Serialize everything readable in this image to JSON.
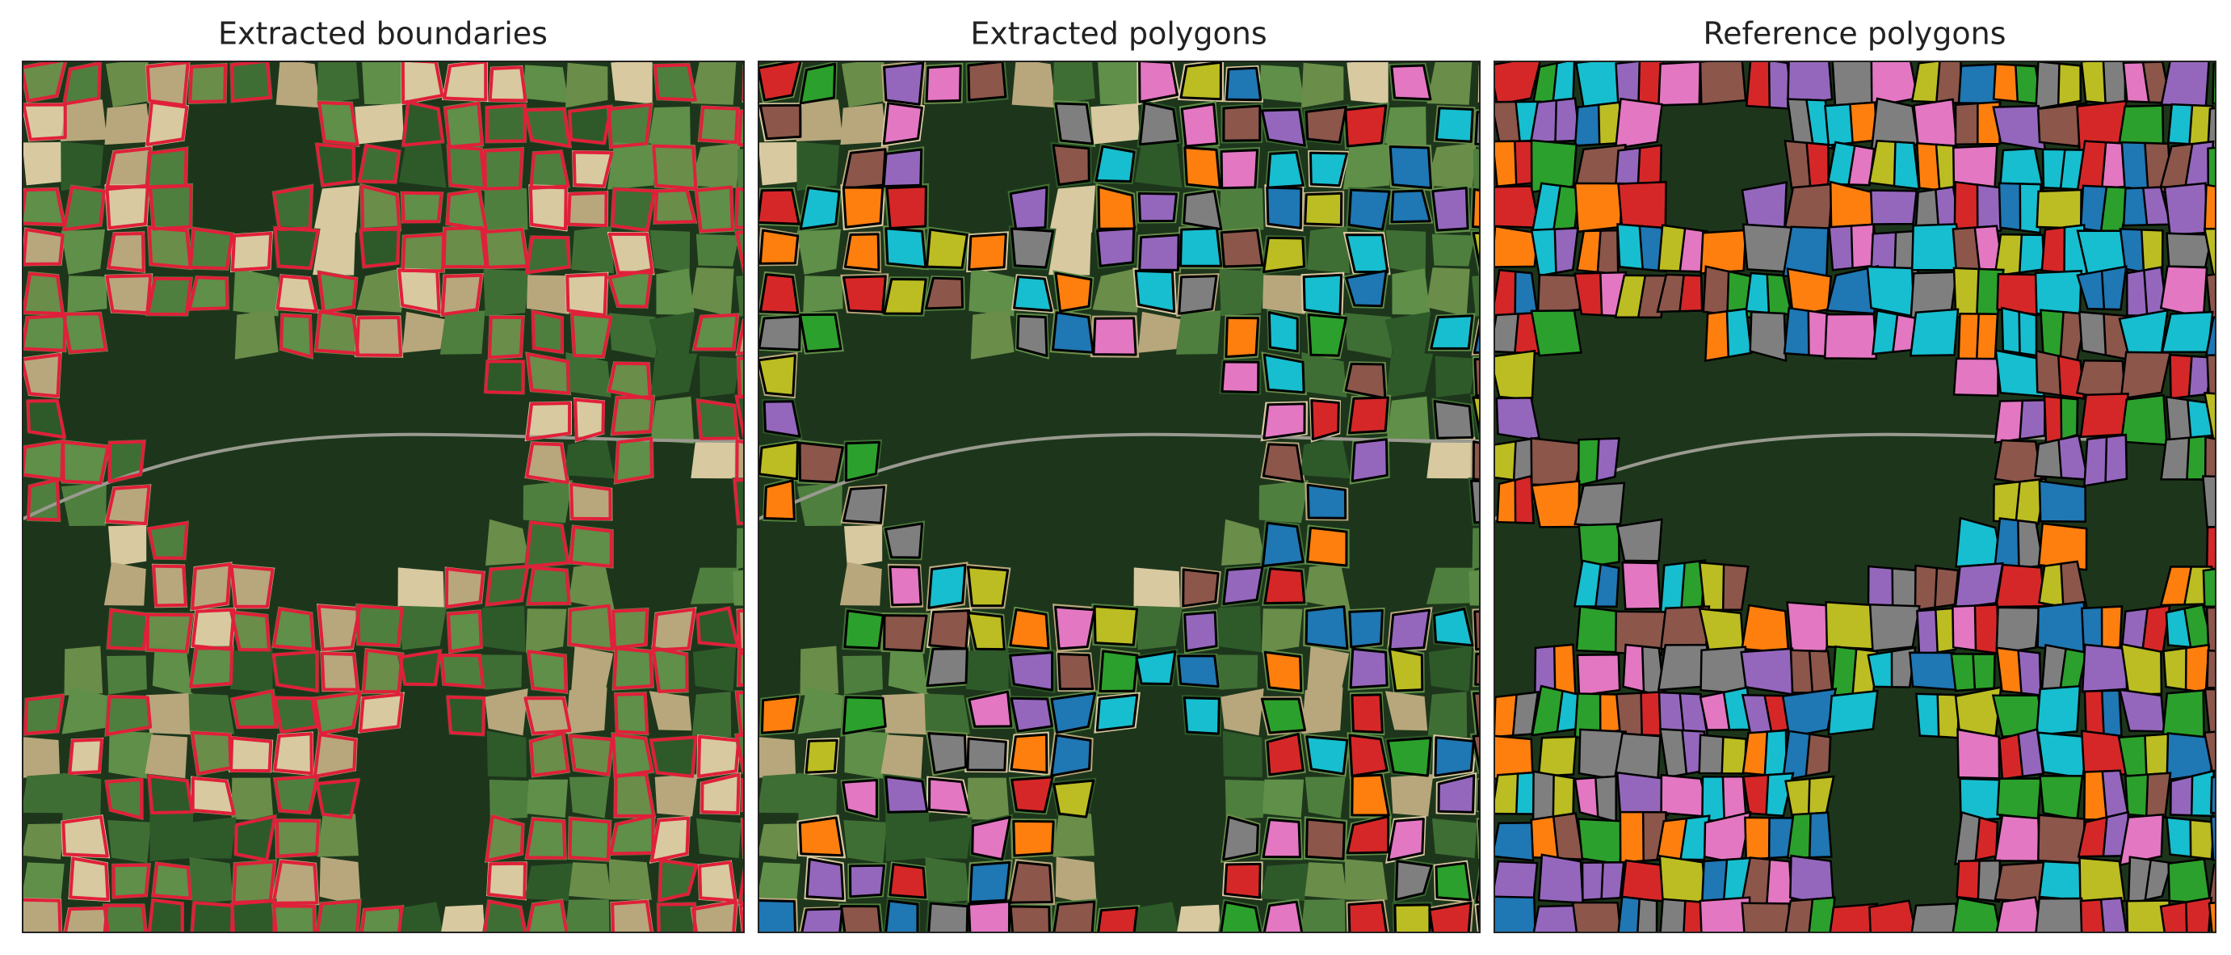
{
  "panels": [
    {
      "title": "Extracted boundaries"
    },
    {
      "title": "Extracted polygons"
    },
    {
      "title": "Reference polygons"
    }
  ]
}
